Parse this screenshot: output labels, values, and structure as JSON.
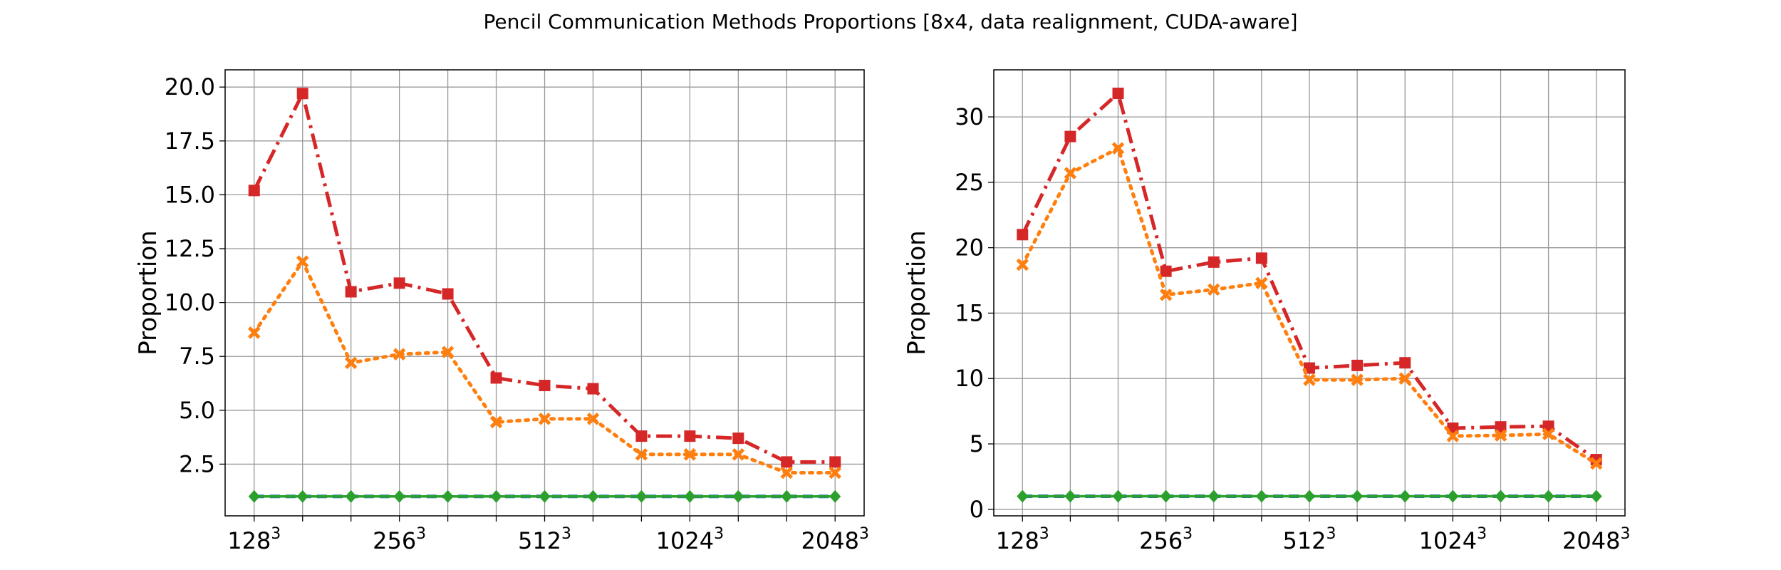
{
  "figure": {
    "title": "Pencil Communication Methods Proportions [8x4, data realignment, CUDA-aware]"
  },
  "colors": {
    "red": "#d62728",
    "orange": "#ff7f0e",
    "green": "#2ca02c",
    "blue": "#1f77b4",
    "grid": "#999999"
  },
  "chart_data": [
    {
      "type": "line",
      "ylabel": "Proportion",
      "xlabel": "",
      "x": [
        0,
        1,
        2,
        3,
        4,
        5,
        6,
        7,
        8,
        9,
        10,
        11,
        12
      ],
      "xlim": [
        -0.6,
        12.6
      ],
      "ylim": [
        0.1,
        20.8
      ],
      "xticks": [
        {
          "x": 0,
          "base": "128",
          "exp": "3"
        },
        {
          "x": 3,
          "base": "256",
          "exp": "3"
        },
        {
          "x": 6,
          "base": "512",
          "exp": "3"
        },
        {
          "x": 9,
          "base": "1024",
          "exp": "3"
        },
        {
          "x": 12,
          "base": "2048",
          "exp": "3"
        }
      ],
      "yticks": [
        "2.5",
        "5.0",
        "7.5",
        "10.0",
        "12.5",
        "15.0",
        "17.5",
        "20.0"
      ],
      "grid": true,
      "series": [
        {
          "style": "dashdot",
          "marker": "square",
          "color": "#d62728",
          "values": [
            15.2,
            19.7,
            10.5,
            10.9,
            10.4,
            6.5,
            6.15,
            6.0,
            3.8,
            3.8,
            3.7,
            2.6,
            2.6
          ]
        },
        {
          "style": "dotted",
          "marker": "x",
          "color": "#ff7f0e",
          "values": [
            8.6,
            11.9,
            7.2,
            7.6,
            7.7,
            4.45,
            4.6,
            4.6,
            2.95,
            2.95,
            2.95,
            2.1,
            2.1
          ]
        },
        {
          "style": "dashed",
          "marker": "none",
          "color": "#1f77b4",
          "values": [
            1.0,
            1.0,
            1.0,
            1.0,
            1.0,
            1.0,
            1.0,
            1.0,
            1.0,
            1.0,
            1.0,
            1.0,
            1.0
          ]
        },
        {
          "style": "solid",
          "marker": "diamond",
          "color": "#2ca02c",
          "values": [
            1.0,
            1.0,
            1.0,
            1.0,
            1.0,
            1.0,
            1.0,
            1.0,
            1.0,
            1.0,
            1.0,
            1.0,
            1.0
          ]
        }
      ]
    },
    {
      "type": "line",
      "ylabel": "Proportion",
      "xlabel": "",
      "x": [
        0,
        1,
        2,
        3,
        4,
        5,
        6,
        7,
        8,
        9,
        10,
        11,
        12
      ],
      "xlim": [
        -0.6,
        12.6
      ],
      "ylim": [
        -0.5,
        33.6
      ],
      "xticks": [
        {
          "x": 0,
          "base": "128",
          "exp": "3"
        },
        {
          "x": 3,
          "base": "256",
          "exp": "3"
        },
        {
          "x": 6,
          "base": "512",
          "exp": "3"
        },
        {
          "x": 9,
          "base": "1024",
          "exp": "3"
        },
        {
          "x": 12,
          "base": "2048",
          "exp": "3"
        }
      ],
      "yticks": [
        "0",
        "5",
        "10",
        "15",
        "20",
        "25",
        "30"
      ],
      "grid": true,
      "series": [
        {
          "style": "dashdot",
          "marker": "square",
          "color": "#d62728",
          "values": [
            21.0,
            28.5,
            31.8,
            18.2,
            18.9,
            19.2,
            10.8,
            11.0,
            11.2,
            6.2,
            6.3,
            6.35,
            3.8
          ]
        },
        {
          "style": "dotted",
          "marker": "x",
          "color": "#ff7f0e",
          "values": [
            18.7,
            25.7,
            27.6,
            16.4,
            16.8,
            17.3,
            9.9,
            9.9,
            10.0,
            5.6,
            5.65,
            5.75,
            3.5
          ]
        },
        {
          "style": "dashed",
          "marker": "none",
          "color": "#1f77b4",
          "values": [
            1.0,
            1.0,
            1.0,
            1.0,
            1.0,
            1.0,
            1.0,
            1.0,
            1.0,
            1.0,
            1.0,
            1.0,
            1.0
          ]
        },
        {
          "style": "solid",
          "marker": "diamond",
          "color": "#2ca02c",
          "values": [
            1.0,
            1.0,
            1.0,
            1.0,
            1.0,
            1.0,
            1.0,
            1.0,
            1.0,
            1.0,
            1.0,
            1.0,
            1.0
          ]
        }
      ]
    }
  ]
}
